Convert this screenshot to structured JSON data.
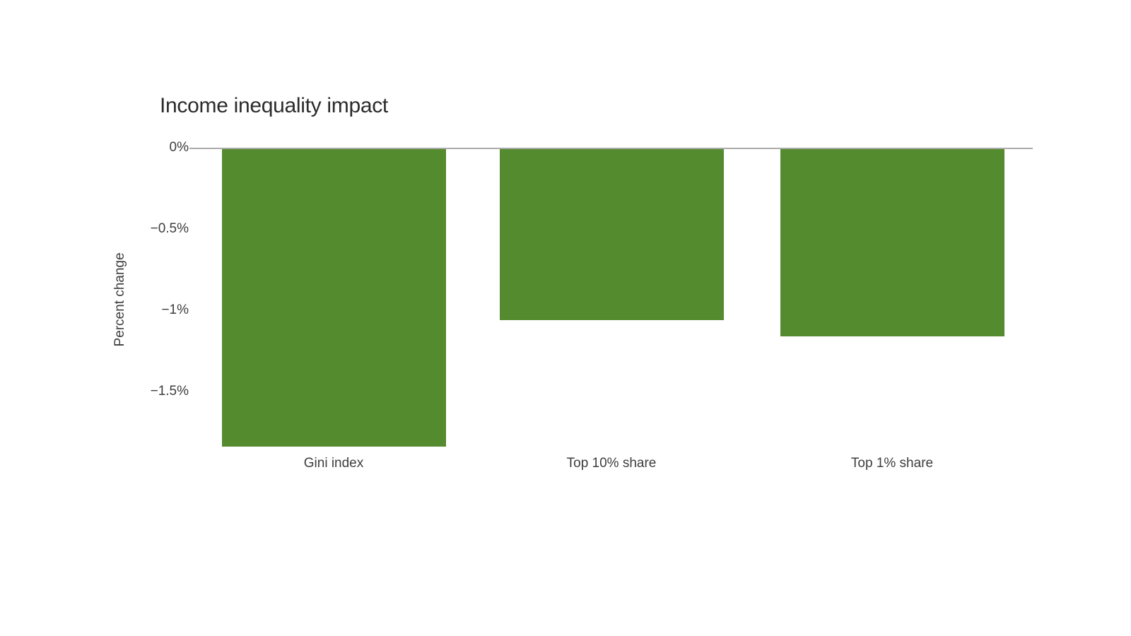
{
  "chart_data": {
    "type": "bar",
    "title": "Income inequality impact",
    "xlabel": "",
    "ylabel": "Percent change",
    "categories": [
      "Gini index",
      "Top 10% share",
      "Top 1% share"
    ],
    "values": [
      -1.84,
      -1.06,
      -1.16
    ],
    "value_unit": "percent",
    "ylim": [
      -1.9,
      0
    ],
    "yticks": [
      {
        "value": 0,
        "label": "0%"
      },
      {
        "value": -0.5,
        "label": "−0.5%"
      },
      {
        "value": -1,
        "label": "−1%"
      },
      {
        "value": -1.5,
        "label": "−1.5%"
      }
    ],
    "grid": "off",
    "legend": "none",
    "colors": {
      "bar": "#558b2f",
      "axis_line": "#aaaaaa",
      "title_text": "#2b2b2b",
      "label_text": "#3d3d3d",
      "background": "#ffffff"
    }
  }
}
